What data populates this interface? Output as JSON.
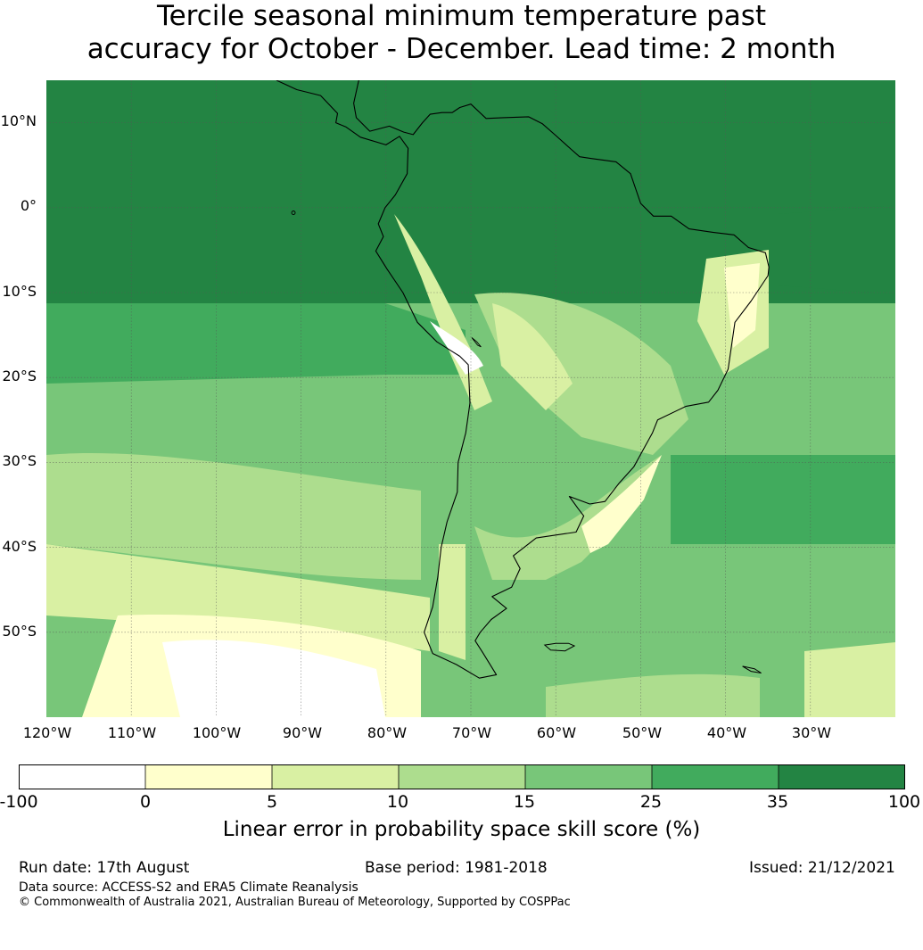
{
  "title": {
    "line1": "Tercile seasonal minimum temperature past",
    "line2": "accuracy for October - December. Lead time: 2 month"
  },
  "map": {
    "lat_labels": [
      "10°N",
      "0°",
      "10°S",
      "20°S",
      "30°S",
      "40°S",
      "50°S"
    ],
    "lon_labels": [
      "120°W",
      "110°W",
      "100°W",
      "90°W",
      "80°W",
      "70°W",
      "60°W",
      "50°W",
      "40°W",
      "30°W"
    ],
    "lon_range": [
      -120,
      -20
    ],
    "lat_range": [
      -60,
      15
    ],
    "projection": "PlateCarree",
    "gridlines": true
  },
  "colorbar": {
    "ticks": [
      "-100",
      "0",
      "5",
      "10",
      "15",
      "25",
      "35",
      "100"
    ],
    "colors": [
      "#ffffff",
      "#ffffcc",
      "#d9f0a3",
      "#addd8e",
      "#78c679",
      "#41ab5d",
      "#238443"
    ],
    "label": "Linear error in probability space skill score (%)"
  },
  "footer": {
    "run_date": "Run date: 17th August",
    "base_period": "Base period: 1981-2018",
    "issued": "Issued: 21/12/2021",
    "data_source": "Data source: ACCESS-S2 and ERA5 Climate Reanalysis",
    "copyright": "© Commonwealth of Australia 2021, Australian Bureau of Meteorology, Supported by COSPPac"
  }
}
